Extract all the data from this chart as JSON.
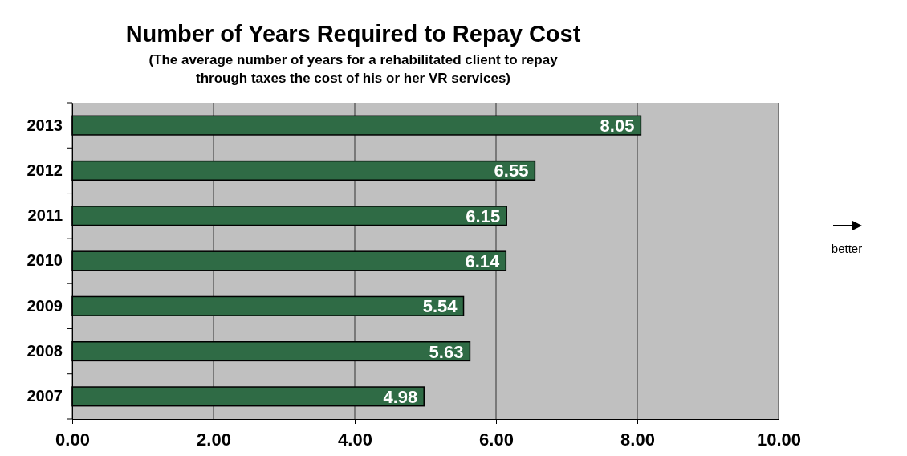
{
  "chart_data": {
    "type": "bar",
    "orientation": "horizontal",
    "title": "Number of Years Required to Repay Cost",
    "subtitle": "(The average number of years for a rehabilitated client to repay through taxes the cost of his or her VR services)",
    "categories": [
      "2013",
      "2012",
      "2011",
      "2010",
      "2009",
      "2008",
      "2007"
    ],
    "values": [
      8.05,
      6.55,
      6.15,
      6.14,
      5.54,
      5.63,
      4.98
    ],
    "color": "#2f6b45",
    "xlim": [
      0,
      10
    ],
    "xticks": [
      {
        "value": 0,
        "label": "0.00"
      },
      {
        "value": 2,
        "label": "2.00"
      },
      {
        "value": 4,
        "label": "4.00"
      },
      {
        "value": 6,
        "label": "6.00"
      },
      {
        "value": 8,
        "label": "8.00"
      },
      {
        "value": 10,
        "label": "10.00"
      }
    ],
    "grid": "x",
    "data_labels": true,
    "annotations": [
      "better"
    ]
  }
}
